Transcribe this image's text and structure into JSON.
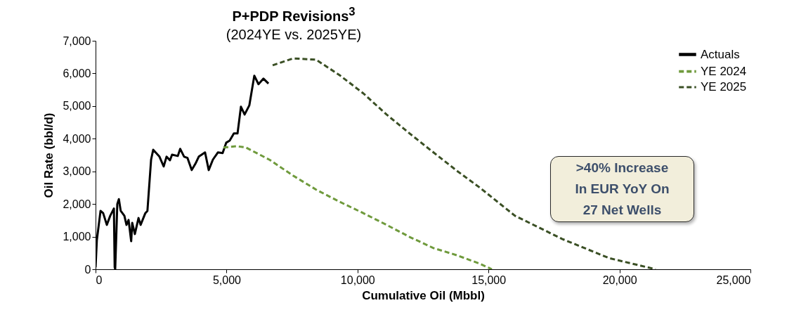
{
  "chart_data": {
    "type": "line",
    "title": "P+PDP Revisions$^{3}$",
    "subtitle": "(2024YE vs. 2025YE)",
    "xlabel": "Cumulative Oil (Mbbl)",
    "ylabel": "Oil Rate (bbl/d)",
    "xlim": [
      0,
      25000
    ],
    "xticks": [
      0,
      {
        "value": 5000,
        "label": "5,000"
      },
      {
        "value": 10000,
        "label": "10,000"
      },
      {
        "value": 15000,
        "label": "15,000"
      },
      {
        "value": 20000,
        "label": "20,000"
      },
      {
        "value": 25000,
        "label": "25,000"
      }
    ],
    "ylim": [
      0,
      7000
    ],
    "yticks": [
      0,
      {
        "value": 1000,
        "label": "1,000"
      },
      {
        "value": 2000,
        "label": "2,000"
      },
      {
        "value": 3000,
        "label": "3,000"
      },
      {
        "value": 4000,
        "label": "4,000"
      },
      {
        "value": 5000,
        "label": "5,000"
      },
      {
        "value": 6000,
        "label": "6,000"
      },
      {
        "value": 7000,
        "label": "7,000"
      }
    ],
    "grid": false,
    "legend": "top right",
    "annotations": [
      ">40% Increase\nIn EUR YoY On\n27 Net Wells"
    ],
    "series": [
      {
        "name": "Actuals",
        "color": "#000000",
        "line_style": "solid",
        "x": [
          0,
          50,
          190,
          290,
          430,
          560,
          700,
          730,
          750,
          830,
          890,
          960,
          1100,
          1180,
          1260,
          1360,
          1400,
          1500,
          1640,
          1720,
          1900,
          1980,
          2120,
          2200,
          2440,
          2600,
          2710,
          2840,
          2920,
          3140,
          3230,
          3380,
          3510,
          3670,
          3810,
          3940,
          4180,
          4320,
          4480,
          4670,
          4850,
          4990,
          5120,
          5280,
          5420,
          5550,
          5690,
          5870,
          6060,
          6220,
          6410,
          6600
        ],
        "values": [
          60,
          900,
          1790,
          1720,
          1360,
          1640,
          1860,
          60,
          0,
          2000,
          2150,
          1790,
          1640,
          1360,
          1510,
          860,
          1420,
          1080,
          1570,
          1360,
          1720,
          1790,
          3360,
          3660,
          3450,
          3150,
          3450,
          3340,
          3510,
          3470,
          3690,
          3450,
          3410,
          3040,
          3230,
          3450,
          3580,
          3040,
          3360,
          3580,
          3560,
          3880,
          3940,
          4160,
          4160,
          4980,
          4740,
          5020,
          5930,
          5670,
          5840,
          5690
        ]
      },
      {
        "name": "YE 2024",
        "color": "#6f9a3c",
        "line_style": "dashed",
        "x": [
          4880,
          5390,
          5740,
          6630,
          7540,
          8420,
          9310,
          10220,
          11110,
          11990,
          12900,
          13790,
          14670,
          15130
        ],
        "values": [
          3730,
          3770,
          3730,
          3360,
          2870,
          2440,
          2070,
          1720,
          1360,
          990,
          650,
          430,
          170,
          0
        ]
      },
      {
        "name": "YE 2025",
        "color": "#3a4f24",
        "line_style": "dashed",
        "x": [
          6760,
          7540,
          8420,
          9310,
          10220,
          11110,
          11990,
          12900,
          13790,
          14670,
          16010,
          17810,
          19610,
          21380
        ],
        "values": [
          6250,
          6460,
          6420,
          5950,
          5390,
          4740,
          4160,
          3580,
          3020,
          2500,
          1640,
          930,
          340,
          0
        ]
      }
    ]
  }
}
